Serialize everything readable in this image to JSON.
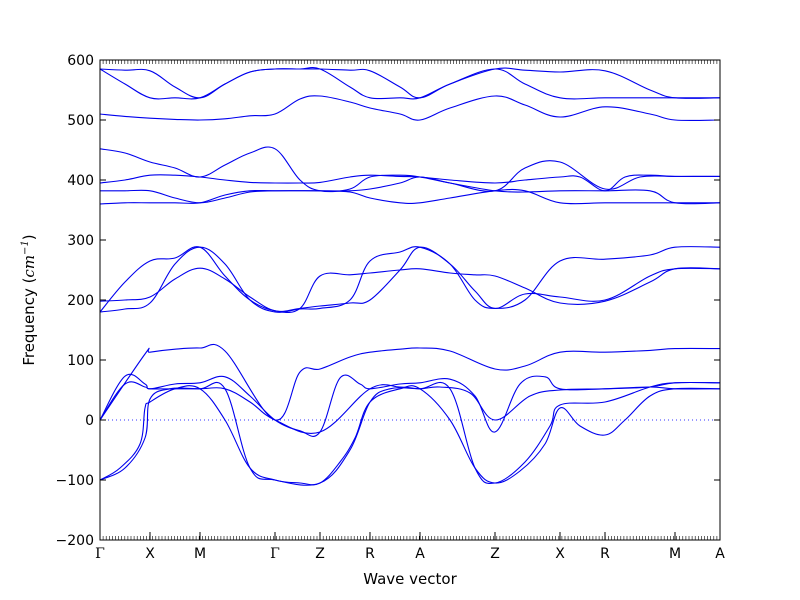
{
  "chart_data": {
    "type": "line",
    "title": "",
    "xlabel": "Wave vector",
    "ylabel_prefix": "Frequency (",
    "ylabel_unit": "cm",
    "ylabel_exp": "−1",
    "ylabel_suffix": ")",
    "ylim": [
      -200,
      600
    ],
    "xlim": [
      0,
      12.4
    ],
    "yticks": [
      -200,
      -100,
      0,
      100,
      200,
      300,
      400,
      500,
      600
    ],
    "ytick_labels": [
      "−200",
      "−100",
      "0",
      "100",
      "200",
      "300",
      "400",
      "500",
      "600"
    ],
    "high_symmetry_points": [
      {
        "label": "Γ",
        "x": 0
      },
      {
        "label": "X",
        "x": 1.0
      },
      {
        "label": "M",
        "x": 2.0
      },
      {
        "label": "Γ",
        "x": 3.5
      },
      {
        "label": "Z",
        "x": 4.4
      },
      {
        "label": "R",
        "x": 5.4
      },
      {
        "label": "A",
        "x": 6.4
      },
      {
        "label": "Z",
        "x": 7.9
      },
      {
        "label": "X",
        "x": 9.2
      },
      {
        "label": "R",
        "x": 10.1
      },
      {
        "label": "M",
        "x": 11.5
      },
      {
        "label": "A",
        "x": 12.4
      }
    ],
    "zero_line": {
      "y": 0,
      "style": "dotted",
      "color": "#3333ff"
    },
    "line_color": "#0000ee",
    "series": [
      {
        "x": [
          0,
          0.5,
          0.9,
          1.0,
          1.5,
          2.0,
          2.5,
          3.0,
          3.5,
          4.4,
          5.4,
          6.0,
          6.4,
          6.8,
          7.4,
          7.9,
          8.6,
          9.2,
          10.1,
          11.0,
          11.5,
          12.4
        ],
        "y": [
          0,
          60,
          55,
          52,
          52,
          52,
          52,
          30,
          0,
          -20,
          52,
          55,
          52,
          55,
          45,
          0,
          40,
          50,
          52,
          55,
          52,
          52
        ]
      },
      {
        "x": [
          0,
          0.5,
          0.9,
          1.0,
          1.5,
          2.0,
          2.5,
          3.0,
          3.5,
          4.0,
          4.4,
          4.8,
          5.2,
          5.4,
          6.0,
          6.4,
          7.0,
          7.5,
          7.9,
          8.4,
          8.9,
          9.2,
          10.1,
          11.0,
          11.5,
          12.4
        ],
        "y": [
          0,
          73,
          60,
          52,
          60,
          62,
          72,
          40,
          0,
          -18,
          -20,
          70,
          60,
          52,
          60,
          62,
          68,
          40,
          -20,
          60,
          72,
          52,
          52,
          55,
          62,
          62
        ]
      },
      {
        "x": [
          0,
          0.9,
          1.0,
          1.5,
          2.0,
          2.5,
          3.5,
          4.0,
          4.4,
          5.0,
          5.4,
          6.0,
          6.4,
          7.0,
          7.9,
          8.5,
          9.2,
          10.1,
          11.0,
          11.5,
          12.4
        ],
        "y": [
          0,
          110,
          113,
          118,
          120,
          115,
          0,
          80,
          85,
          105,
          113,
          118,
          120,
          115,
          85,
          90,
          113,
          113,
          116,
          119,
          119
        ]
      },
      {
        "x": [
          0,
          0.4,
          0.8,
          0.9,
          1.0,
          1.5,
          2.0,
          2.5,
          3.0,
          3.5,
          4.0,
          4.4,
          4.8,
          5.1,
          5.4,
          6.0,
          6.4,
          7.0,
          7.5,
          7.9,
          8.4,
          8.9,
          9.2,
          9.6,
          10.1,
          10.5,
          11.0,
          11.5,
          12.4
        ],
        "y": [
          -100,
          -80,
          -40,
          20,
          30,
          52,
          52,
          0,
          -80,
          -100,
          -105,
          -105,
          -70,
          -30,
          30,
          52,
          52,
          0,
          -80,
          -105,
          -85,
          -40,
          20,
          -10,
          -25,
          0,
          40,
          52,
          52
        ]
      },
      {
        "x": [
          0,
          0.5,
          0.9,
          1.0,
          1.4,
          2.0,
          2.5,
          3.0,
          3.5,
          4.4,
          5.0,
          5.4,
          5.8,
          6.4,
          7.0,
          7.5,
          7.9,
          8.5,
          9.0,
          9.2,
          10.1,
          11.0,
          11.5,
          12.4
        ],
        "y": [
          -100,
          -80,
          -30,
          35,
          52,
          52,
          52,
          -80,
          -100,
          -105,
          -50,
          30,
          52,
          52,
          52,
          -80,
          -105,
          -70,
          -10,
          25,
          30,
          55,
          62,
          62
        ]
      },
      {
        "x": [
          0,
          0.5,
          1.0,
          1.5,
          2.0,
          2.5,
          3.0,
          3.5,
          4.0,
          4.4,
          5.0,
          5.4,
          6.0,
          6.4,
          7.0,
          7.5,
          7.9,
          8.5,
          9.2,
          10.1,
          11.0,
          11.5,
          12.4
        ],
        "y": [
          180,
          185,
          195,
          260,
          288,
          260,
          200,
          180,
          185,
          186,
          200,
          265,
          280,
          288,
          260,
          200,
          186,
          200,
          265,
          268,
          275,
          288,
          288
        ]
      },
      {
        "x": [
          0,
          0.5,
          1.0,
          1.5,
          2.0,
          2.5,
          3.0,
          3.5,
          4.0,
          4.4,
          5.0,
          5.4,
          6.0,
          6.4,
          7.0,
          7.5,
          7.9,
          8.5,
          9.2,
          10.1,
          11.0,
          11.5,
          12.4
        ],
        "y": [
          198,
          200,
          205,
          235,
          253,
          235,
          205,
          182,
          186,
          190,
          195,
          200,
          250,
          288,
          260,
          215,
          186,
          210,
          205,
          200,
          240,
          252,
          252
        ]
      },
      {
        "x": [
          0,
          0.5,
          1.0,
          1.5,
          2.0,
          2.5,
          3.0,
          3.5,
          4.0,
          4.4,
          5.0,
          5.4,
          6.0,
          6.4,
          7.0,
          7.5,
          7.9,
          8.5,
          9.2,
          10.1,
          11.0,
          11.5,
          12.4
        ],
        "y": [
          180,
          230,
          265,
          270,
          288,
          240,
          200,
          182,
          186,
          240,
          242,
          245,
          250,
          252,
          245,
          242,
          240,
          220,
          195,
          198,
          230,
          252,
          252
        ]
      },
      {
        "x": [
          0,
          0.5,
          1.0,
          1.5,
          2.0,
          2.5,
          3.0,
          3.5,
          4.4,
          5.0,
          5.4,
          6.0,
          6.4,
          7.0,
          7.9,
          8.5,
          9.2,
          10.1,
          11.0,
          11.5,
          12.4
        ],
        "y": [
          360,
          362,
          362,
          362,
          362,
          375,
          382,
          382,
          382,
          380,
          370,
          362,
          362,
          370,
          382,
          382,
          362,
          362,
          362,
          362,
          362
        ]
      },
      {
        "x": [
          0,
          0.5,
          1.0,
          1.5,
          2.0,
          2.5,
          3.0,
          3.5,
          4.4,
          5.0,
          5.4,
          6.0,
          6.4,
          7.0,
          7.9,
          8.5,
          9.2,
          10.1,
          11.0,
          11.5,
          12.4
        ],
        "y": [
          382,
          382,
          382,
          370,
          362,
          370,
          380,
          382,
          382,
          382,
          385,
          395,
          405,
          395,
          382,
          380,
          382,
          382,
          382,
          362,
          362
        ]
      },
      {
        "x": [
          0,
          0.5,
          1.0,
          1.5,
          2.0,
          2.5,
          3.0,
          3.5,
          4.0,
          4.4,
          5.0,
          5.4,
          6.0,
          6.4,
          7.0,
          7.9,
          8.5,
          9.2,
          9.6,
          10.1,
          10.5,
          11.0,
          11.5,
          12.4
        ],
        "y": [
          395,
          400,
          408,
          408,
          405,
          400,
          396,
          395,
          395,
          396,
          405,
          408,
          406,
          405,
          400,
          395,
          400,
          405,
          405,
          382,
          405,
          408,
          406,
          406
        ]
      },
      {
        "x": [
          0,
          0.5,
          1.0,
          1.5,
          2.0,
          2.5,
          3.0,
          3.5,
          4.0,
          4.4,
          5.0,
          5.4,
          6.0,
          6.4,
          7.0,
          7.9,
          8.5,
          9.2,
          10.1,
          10.8,
          11.5,
          12.4
        ],
        "y": [
          452,
          445,
          430,
          420,
          405,
          425,
          445,
          452,
          400,
          382,
          385,
          405,
          408,
          405,
          395,
          382,
          420,
          430,
          385,
          405,
          406,
          406
        ]
      },
      {
        "x": [
          0,
          0.5,
          1.0,
          1.5,
          2.0,
          2.5,
          3.0,
          3.5,
          4.0,
          4.4,
          5.0,
          5.4,
          6.0,
          6.4,
          7.0,
          7.9,
          8.5,
          9.2,
          10.1,
          11.0,
          11.5,
          12.4
        ],
        "y": [
          510,
          506,
          503,
          501,
          500,
          502,
          507,
          510,
          535,
          540,
          530,
          520,
          510,
          500,
          520,
          540,
          525,
          505,
          522,
          510,
          500,
          500
        ]
      },
      {
        "x": [
          0,
          0.5,
          1.0,
          1.5,
          2.0,
          2.5,
          3.0,
          3.5,
          4.0,
          4.4,
          5.0,
          5.4,
          6.0,
          6.4,
          7.0,
          7.9,
          8.5,
          9.2,
          10.1,
          11.0,
          11.5,
          12.4
        ],
        "y": [
          585,
          560,
          537,
          537,
          537,
          560,
          580,
          585,
          585,
          585,
          555,
          537,
          537,
          537,
          560,
          585,
          560,
          537,
          537,
          537,
          537,
          537
        ]
      },
      {
        "x": [
          0,
          0.5,
          1.0,
          1.5,
          2.0,
          2.5,
          3.0,
          3.5,
          4.0,
          4.4,
          5.0,
          5.4,
          6.0,
          6.4,
          7.0,
          7.9,
          8.5,
          9.2,
          10.1,
          11.0,
          11.5,
          12.4
        ],
        "y": [
          585,
          583,
          582,
          555,
          537,
          560,
          580,
          585,
          585,
          585,
          583,
          582,
          555,
          537,
          560,
          585,
          583,
          580,
          582,
          550,
          537,
          537
        ]
      }
    ]
  }
}
